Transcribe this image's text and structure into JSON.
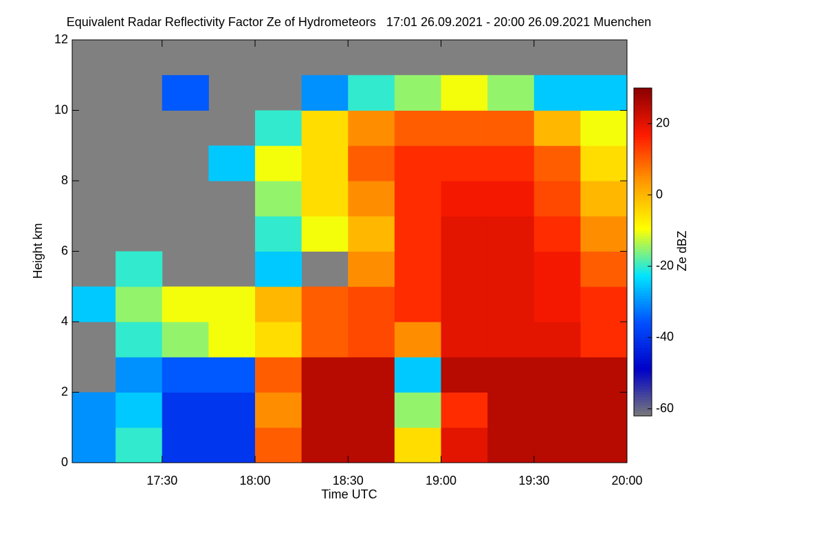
{
  "chart_data": {
    "type": "heatmap",
    "title": "Equivalent Radar Reflectivity Factor Ze of Hydrometeors   17:01 26.09.2021 - 20:00 26.09.2021 Muenchen",
    "xlabel": "Time UTC",
    "ylabel": "Height km",
    "colorbar_label": "Ze dBZ",
    "xlim": [
      17.0167,
      20.0
    ],
    "xticks": [
      {
        "value": 17.5,
        "label": "17:30"
      },
      {
        "value": 18.0,
        "label": "18:00"
      },
      {
        "value": 18.5,
        "label": "18:30"
      },
      {
        "value": 19.0,
        "label": "19:00"
      },
      {
        "value": 19.5,
        "label": "19:30"
      },
      {
        "value": 20.0,
        "label": "20:00"
      }
    ],
    "ylim": [
      0,
      12
    ],
    "yticks": [
      0,
      2,
      4,
      6,
      8,
      10,
      12
    ],
    "zlim": [
      -62,
      30
    ],
    "zticks": [
      -60,
      -40,
      -20,
      0,
      20
    ],
    "colormap": [
      "#7a7a7a",
      "#0000c8",
      "#0050ff",
      "#00e5ff",
      "#ffff00",
      "#ff9a00",
      "#ff1a00",
      "#8b0000"
    ],
    "missing_color": "#808080",
    "x_bins": [
      17.0167,
      17.25,
      17.5,
      17.75,
      18.0,
      18.25,
      18.5,
      18.75,
      19.0,
      19.25,
      19.5,
      19.75,
      20.0
    ],
    "y_bins": [
      0,
      1,
      2,
      3,
      4,
      5,
      6,
      7,
      8,
      9,
      10,
      11,
      12
    ],
    "z": [
      [
        -30,
        -20,
        -40,
        -40,
        10,
        25,
        25,
        -5,
        20,
        25,
        25,
        25
      ],
      [
        -30,
        -25,
        -40,
        -40,
        5,
        25,
        25,
        -15,
        15,
        25,
        25,
        25
      ],
      [
        null,
        -30,
        -35,
        -35,
        10,
        25,
        25,
        -25,
        25,
        25,
        25,
        25
      ],
      [
        null,
        -20,
        -15,
        -10,
        -5,
        10,
        12,
        5,
        20,
        20,
        20,
        15
      ],
      [
        -25,
        -15,
        -10,
        -10,
        0,
        10,
        12,
        15,
        20,
        20,
        18,
        15
      ],
      [
        null,
        -20,
        null,
        null,
        -25,
        null,
        5,
        15,
        20,
        20,
        18,
        10
      ],
      [
        null,
        null,
        null,
        null,
        -20,
        -10,
        0,
        15,
        20,
        20,
        15,
        5
      ],
      [
        null,
        null,
        null,
        null,
        -15,
        -5,
        5,
        15,
        18,
        18,
        12,
        0
      ],
      [
        null,
        null,
        null,
        -25,
        -10,
        -5,
        10,
        15,
        15,
        15,
        10,
        -5
      ],
      [
        null,
        null,
        null,
        null,
        -20,
        -5,
        5,
        10,
        10,
        10,
        0,
        -10
      ],
      [
        null,
        null,
        -35,
        null,
        null,
        -30,
        -20,
        -15,
        -10,
        -15,
        -25,
        -25
      ],
      [
        null,
        null,
        null,
        null,
        null,
        null,
        null,
        null,
        null,
        null,
        null,
        null
      ]
    ]
  }
}
